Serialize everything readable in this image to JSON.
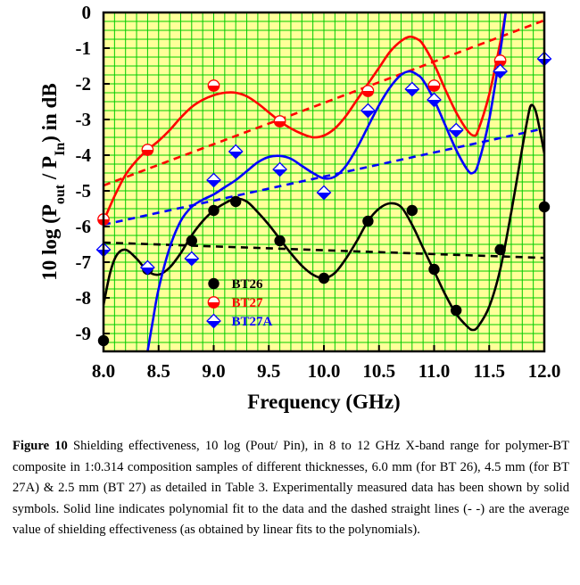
{
  "chart_data": {
    "type": "line",
    "xlabel": "Frequency (GHz)",
    "ylabel": "10 log (P_out / P_in) in dB",
    "ylabel_parts": {
      "a": "10 log (P",
      "b": "out",
      "c": " / P",
      "d": "In",
      "e": ") in dB"
    },
    "xlim": [
      8.0,
      12.0
    ],
    "ylim": [
      -9.5,
      0
    ],
    "x_ticks": [
      "8.0",
      "8.5",
      "9.0",
      "9.5",
      "10.0",
      "10.5",
      "11.0",
      "11.5",
      "12.0"
    ],
    "y_ticks": [
      "0",
      "-1",
      "-2",
      "-3",
      "-4",
      "-5",
      "-6",
      "-7",
      "-8",
      "-9"
    ],
    "grid": true,
    "grid_color": "#00cc00",
    "background_color": "#ffff99",
    "legend_position": "lower-left inside plot",
    "series": [
      {
        "name": "BT26",
        "color": "#000000",
        "marker": "circle",
        "x": [
          8.0,
          8.4,
          8.8,
          9.0,
          9.2,
          9.6,
          10.0,
          10.4,
          10.8,
          11.0,
          11.2,
          11.6,
          12.0
        ],
        "values": [
          -9.2,
          -7.2,
          -6.4,
          -5.55,
          -5.3,
          -6.4,
          -7.45,
          -5.85,
          -5.55,
          -7.2,
          -8.35,
          -6.65,
          -5.45
        ],
        "fit": [
          [
            8.0,
            -8.2
          ],
          [
            8.06,
            -7.3
          ],
          [
            8.12,
            -6.8
          ],
          [
            8.2,
            -6.65
          ],
          [
            8.3,
            -6.9
          ],
          [
            8.4,
            -7.25
          ],
          [
            8.5,
            -7.35
          ],
          [
            8.6,
            -7.15
          ],
          [
            8.7,
            -6.75
          ],
          [
            8.8,
            -6.25
          ],
          [
            8.9,
            -5.85
          ],
          [
            9.0,
            -5.55
          ],
          [
            9.1,
            -5.35
          ],
          [
            9.2,
            -5.22
          ],
          [
            9.3,
            -5.3
          ],
          [
            9.4,
            -5.6
          ],
          [
            9.5,
            -5.95
          ],
          [
            9.6,
            -6.35
          ],
          [
            9.7,
            -6.75
          ],
          [
            9.8,
            -7.1
          ],
          [
            9.9,
            -7.35
          ],
          [
            10.0,
            -7.45
          ],
          [
            10.1,
            -7.3
          ],
          [
            10.2,
            -6.9
          ],
          [
            10.3,
            -6.4
          ],
          [
            10.4,
            -5.85
          ],
          [
            10.5,
            -5.5
          ],
          [
            10.6,
            -5.35
          ],
          [
            10.7,
            -5.45
          ],
          [
            10.8,
            -5.95
          ],
          [
            10.9,
            -6.6
          ],
          [
            11.0,
            -7.25
          ],
          [
            11.1,
            -7.9
          ],
          [
            11.2,
            -8.45
          ],
          [
            11.3,
            -8.8
          ],
          [
            11.35,
            -8.9
          ],
          [
            11.4,
            -8.8
          ],
          [
            11.5,
            -8.25
          ],
          [
            11.6,
            -7.2
          ],
          [
            11.7,
            -5.6
          ],
          [
            11.8,
            -3.8
          ],
          [
            11.85,
            -2.95
          ],
          [
            11.88,
            -2.6
          ],
          [
            11.92,
            -2.75
          ],
          [
            11.96,
            -3.3
          ],
          [
            12.0,
            -3.95
          ]
        ],
        "avg_line": [
          [
            8.0,
            -6.45
          ],
          [
            12.0,
            -6.88
          ]
        ]
      },
      {
        "name": "BT27",
        "color": "#ff0000",
        "marker": "half-circle",
        "x": [
          8.0,
          8.4,
          9.0,
          9.6,
          10.4,
          11.0,
          11.6
        ],
        "values": [
          -5.8,
          -3.85,
          -2.05,
          -3.05,
          -2.2,
          -2.05,
          -1.35
        ],
        "fit": [
          [
            8.0,
            -5.85
          ],
          [
            8.1,
            -5.15
          ],
          [
            8.2,
            -4.55
          ],
          [
            8.3,
            -4.15
          ],
          [
            8.4,
            -3.85
          ],
          [
            8.5,
            -3.6
          ],
          [
            8.6,
            -3.3
          ],
          [
            8.7,
            -2.95
          ],
          [
            8.8,
            -2.65
          ],
          [
            8.9,
            -2.45
          ],
          [
            9.0,
            -2.32
          ],
          [
            9.1,
            -2.25
          ],
          [
            9.2,
            -2.25
          ],
          [
            9.3,
            -2.35
          ],
          [
            9.4,
            -2.55
          ],
          [
            9.5,
            -2.8
          ],
          [
            9.6,
            -3.05
          ],
          [
            9.7,
            -3.25
          ],
          [
            9.8,
            -3.4
          ],
          [
            9.9,
            -3.5
          ],
          [
            10.0,
            -3.45
          ],
          [
            10.1,
            -3.25
          ],
          [
            10.2,
            -2.9
          ],
          [
            10.3,
            -2.45
          ],
          [
            10.4,
            -2.0
          ],
          [
            10.5,
            -1.55
          ],
          [
            10.6,
            -1.1
          ],
          [
            10.7,
            -0.8
          ],
          [
            10.78,
            -0.68
          ],
          [
            10.85,
            -0.75
          ],
          [
            10.9,
            -0.9
          ],
          [
            11.0,
            -1.45
          ],
          [
            11.1,
            -2.15
          ],
          [
            11.2,
            -2.8
          ],
          [
            11.3,
            -3.3
          ],
          [
            11.36,
            -3.45
          ],
          [
            11.4,
            -3.3
          ],
          [
            11.5,
            -2.3
          ],
          [
            11.6,
            -0.85
          ],
          [
            11.65,
            0.0
          ]
        ],
        "avg_line": [
          [
            8.0,
            -4.85
          ],
          [
            12.0,
            -0.22
          ]
        ]
      },
      {
        "name": "BT27A",
        "color": "#0000ff",
        "marker": "half-diamond",
        "x": [
          8.0,
          8.4,
          8.8,
          9.0,
          9.2,
          9.6,
          10.0,
          10.4,
          10.8,
          11.0,
          11.2,
          11.6,
          12.0
        ],
        "values": [
          -6.65,
          -7.15,
          -6.9,
          -4.7,
          -3.9,
          -4.4,
          -5.05,
          -2.75,
          -2.15,
          -2.45,
          -3.3,
          -1.65,
          -1.3
        ],
        "fit": [
          [
            8.4,
            -9.5
          ],
          [
            8.45,
            -8.6
          ],
          [
            8.5,
            -7.75
          ],
          [
            8.6,
            -6.6
          ],
          [
            8.7,
            -5.85
          ],
          [
            8.8,
            -5.45
          ],
          [
            8.9,
            -5.25
          ],
          [
            9.0,
            -5.1
          ],
          [
            9.1,
            -4.9
          ],
          [
            9.2,
            -4.7
          ],
          [
            9.3,
            -4.45
          ],
          [
            9.4,
            -4.2
          ],
          [
            9.5,
            -4.05
          ],
          [
            9.6,
            -4.02
          ],
          [
            9.7,
            -4.1
          ],
          [
            9.8,
            -4.3
          ],
          [
            9.9,
            -4.5
          ],
          [
            10.0,
            -4.65
          ],
          [
            10.1,
            -4.6
          ],
          [
            10.2,
            -4.3
          ],
          [
            10.3,
            -3.8
          ],
          [
            10.4,
            -3.2
          ],
          [
            10.5,
            -2.6
          ],
          [
            10.6,
            -2.1
          ],
          [
            10.7,
            -1.75
          ],
          [
            10.78,
            -1.65
          ],
          [
            10.85,
            -1.75
          ],
          [
            10.9,
            -1.9
          ],
          [
            11.0,
            -2.45
          ],
          [
            11.1,
            -3.15
          ],
          [
            11.2,
            -3.85
          ],
          [
            11.3,
            -4.4
          ],
          [
            11.35,
            -4.5
          ],
          [
            11.4,
            -4.25
          ],
          [
            11.5,
            -3.0
          ],
          [
            11.6,
            -1.1
          ],
          [
            11.65,
            0.0
          ]
        ],
        "avg_line": [
          [
            8.0,
            -5.95
          ],
          [
            12.0,
            -3.25
          ]
        ]
      }
    ]
  },
  "caption": {
    "label": "Figure 10",
    "text": " Shielding effectiveness, 10 log (Pout/ Pin), in 8 to 12 GHz X-band range for polymer-BT composite in 1:0.314 composition samples of different thicknesses, 6.0 mm (for BT 26), 4.5 mm (for BT 27A) & 2.5 mm (BT 27) as detailed in Table 3. Experimentally measured data has been shown by solid symbols. Solid line indicates polynomial fit to the data and the dashed straight lines (- -) are the average value of shielding effectiveness (as obtained by linear fits to the polynomials)."
  }
}
